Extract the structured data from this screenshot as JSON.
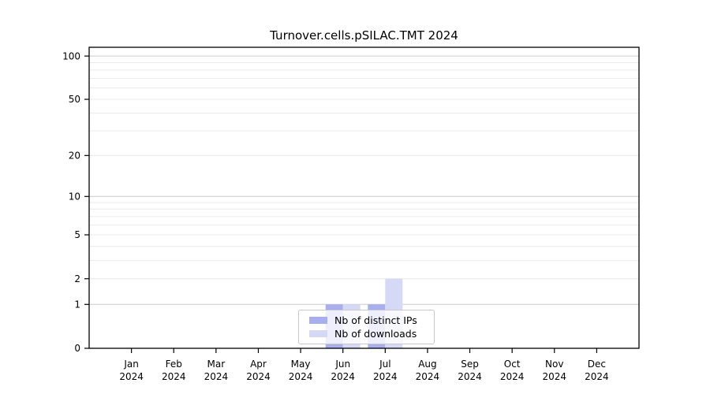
{
  "figure": {
    "background": "#ffffff"
  },
  "chart_data": {
    "type": "bar",
    "title": "Turnover.cells.pSILAC.TMT 2024",
    "categories": [
      "Jan",
      "Feb",
      "Mar",
      "Apr",
      "May",
      "Jun",
      "Jul",
      "Aug",
      "Sep",
      "Oct",
      "Nov",
      "Dec"
    ],
    "year_label": "2024",
    "series": [
      {
        "name": "Nb of distinct IPs",
        "color": "#a9aeee",
        "values": [
          0,
          0,
          0,
          0,
          0,
          1,
          1,
          0,
          0,
          0,
          0,
          0
        ]
      },
      {
        "name": "Nb of downloads",
        "color": "#d5d9f6",
        "values": [
          0,
          0,
          0,
          0,
          0,
          1,
          2,
          0,
          0,
          0,
          0,
          0
        ]
      }
    ],
    "xlabel": "",
    "ylabel": "",
    "yaxis": {
      "scale": "log1p",
      "ticks": [
        0,
        1,
        2,
        5,
        10,
        20,
        50,
        100
      ],
      "ylim": [
        0,
        115
      ],
      "grid_major": [
        1,
        10,
        100
      ],
      "grid_minor": [
        2,
        3,
        4,
        6,
        7,
        8,
        9,
        20,
        30,
        40,
        60,
        70,
        80,
        90
      ],
      "grid_minor_labeled": [
        2,
        5,
        20,
        50
      ]
    },
    "legend": {
      "position": "bottom-center-inside",
      "items": [
        "Nb of distinct IPs",
        "Nb of downloads"
      ]
    },
    "colors": {
      "axis": "#000000",
      "text": "#000000",
      "grid_major": "#cccccc",
      "grid_minor": "#ebebeb",
      "legend_border": "#c9c9c9",
      "background": "#ffffff"
    }
  }
}
